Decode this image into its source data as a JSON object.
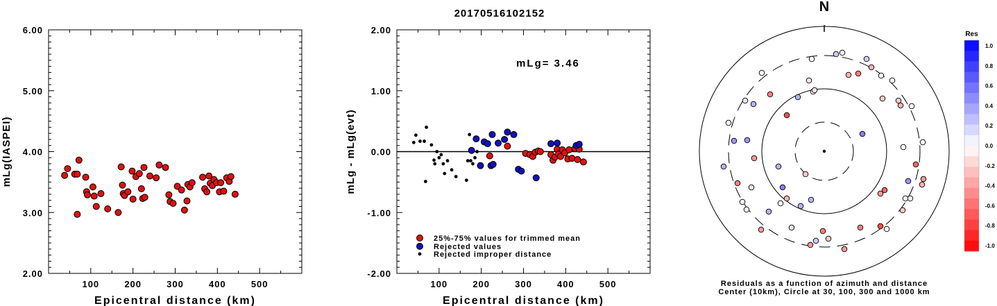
{
  "title": "20170516102152",
  "chart_data": [
    {
      "type": "scatter",
      "ylabel": "mLg(IASPEI)",
      "xlabel": "Epicentral distance (km)",
      "xlim": [
        0,
        600
      ],
      "ylim": [
        2.0,
        6.0
      ],
      "x_ticks": [
        "100",
        "200",
        "300",
        "400",
        "500"
      ],
      "y_ticks": [
        "2.00",
        "3.00",
        "4.00",
        "5.00",
        "6.00"
      ],
      "points": [
        [
          38,
          3.61
        ],
        [
          45,
          3.72
        ],
        [
          62,
          3.63
        ],
        [
          68,
          3.63
        ],
        [
          72,
          3.86
        ],
        [
          68,
          2.97
        ],
        [
          88,
          3.58
        ],
        [
          90,
          3.34
        ],
        [
          92,
          3.29
        ],
        [
          105,
          3.42
        ],
        [
          108,
          3.27
        ],
        [
          113,
          3.1
        ],
        [
          124,
          3.31
        ],
        [
          140,
          3.06
        ],
        [
          165,
          3.0
        ],
        [
          172,
          3.75
        ],
        [
          175,
          3.45
        ],
        [
          177,
          3.31
        ],
        [
          180,
          3.28
        ],
        [
          188,
          3.34
        ],
        [
          198,
          3.68
        ],
        [
          200,
          3.22
        ],
        [
          207,
          3.59
        ],
        [
          215,
          3.64
        ],
        [
          220,
          3.39
        ],
        [
          223,
          3.23
        ],
        [
          226,
          3.74
        ],
        [
          228,
          3.25
        ],
        [
          240,
          3.6
        ],
        [
          255,
          3.57
        ],
        [
          262,
          3.78
        ],
        [
          277,
          3.74
        ],
        [
          285,
          3.29
        ],
        [
          288,
          3.18
        ],
        [
          295,
          3.15
        ],
        [
          305,
          3.43
        ],
        [
          315,
          3.37
        ],
        [
          322,
          3.04
        ],
        [
          328,
          3.19
        ],
        [
          330,
          3.46
        ],
        [
          335,
          3.42
        ],
        [
          340,
          3.49
        ],
        [
          365,
          3.58
        ],
        [
          370,
          3.39
        ],
        [
          375,
          3.34
        ],
        [
          380,
          3.6
        ],
        [
          383,
          3.48
        ],
        [
          388,
          3.44
        ],
        [
          392,
          3.54
        ],
        [
          398,
          3.49
        ],
        [
          405,
          3.34
        ],
        [
          408,
          3.49
        ],
        [
          415,
          3.35
        ],
        [
          422,
          3.57
        ],
        [
          428,
          3.51
        ],
        [
          432,
          3.59
        ],
        [
          442,
          3.3
        ]
      ]
    },
    {
      "type": "scatter",
      "ylabel": "mLg - mLg(evt)",
      "xlabel": "Epicentral distance (km)",
      "annotation": "mLg= 3.46",
      "xlim": [
        0,
        600
      ],
      "ylim": [
        -2.0,
        2.0
      ],
      "x_ticks": [
        "100",
        "200",
        "300",
        "400",
        "500"
      ],
      "y_ticks": [
        "-2.00",
        "-1.00",
        "0.00",
        "1.00",
        "2.00"
      ],
      "legend": [
        "25%-75% values for trimmed mean",
        "Rejected values",
        "Rejected improper distance"
      ],
      "series": [
        {
          "name": "25%-75% values for trimmed mean",
          "color": "#dd1111",
          "points": [
            [
              220,
              -0.07
            ],
            [
              262,
              0.09
            ],
            [
              305,
              -0.03
            ],
            [
              315,
              -0.05
            ],
            [
              322,
              -0.08
            ],
            [
              328,
              -0.01
            ],
            [
              335,
              0.01
            ],
            [
              340,
              0.0
            ],
            [
              365,
              -0.05
            ],
            [
              370,
              -0.14
            ],
            [
              375,
              -0.09
            ],
            [
              380,
              0.04
            ],
            [
              383,
              -0.04
            ],
            [
              388,
              -0.08
            ],
            [
              392,
              0.03
            ],
            [
              398,
              -0.02
            ],
            [
              405,
              -0.12
            ],
            [
              408,
              0.03
            ],
            [
              415,
              -0.11
            ],
            [
              422,
              0.05
            ],
            [
              428,
              -0.13
            ],
            [
              432,
              0.04
            ],
            [
              442,
              -0.17
            ]
          ]
        },
        {
          "name": "Rejected values",
          "color": "#1111bb",
          "points": [
            [
              177,
              0.02
            ],
            [
              188,
              0.21
            ],
            [
              198,
              -0.23
            ],
            [
              207,
              0.16
            ],
            [
              215,
              0.13
            ],
            [
              223,
              -0.23
            ],
            [
              226,
              0.28
            ],
            [
              228,
              -0.21
            ],
            [
              240,
              0.14
            ],
            [
              255,
              0.2
            ],
            [
              262,
              0.32
            ],
            [
              277,
              0.28
            ],
            [
              288,
              -0.29
            ],
            [
              295,
              -0.32
            ],
            [
              330,
              -0.43
            ],
            [
              365,
              0.13
            ],
            [
              380,
              0.14
            ],
            [
              425,
              0.1
            ],
            [
              432,
              0.12
            ]
          ]
        },
        {
          "name": "Rejected improper distance",
          "color": "#000000",
          "points": [
            [
              40,
              0.15
            ],
            [
              45,
              0.27
            ],
            [
              55,
              0.17
            ],
            [
              65,
              0.17
            ],
            [
              70,
              0.4
            ],
            [
              68,
              -0.49
            ],
            [
              82,
              0.11
            ],
            [
              88,
              -0.14
            ],
            [
              90,
              -0.2
            ],
            [
              95,
              0.0
            ],
            [
              100,
              -0.1
            ],
            [
              105,
              -0.05
            ],
            [
              110,
              -0.2
            ],
            [
              113,
              -0.36
            ],
            [
              120,
              -0.15
            ],
            [
              130,
              -0.3
            ],
            [
              140,
              -0.41
            ],
            [
              165,
              -0.47
            ],
            [
              168,
              -0.15
            ],
            [
              172,
              0.28
            ],
            [
              175,
              -0.15
            ],
            [
              180,
              -0.2
            ],
            [
              185,
              -0.1
            ],
            [
              190,
              0.0
            ]
          ]
        }
      ]
    },
    {
      "type": "polar-scatter",
      "north_label": "N",
      "caption_line1": "Residuals as a function of azimuth and distance",
      "caption_line2": "Center (10km), Circle at 30, 100, 300 and 1000 km",
      "colorbar_title": "Res",
      "colorbar_ticks": [
        "1.0",
        "0.8",
        "0.6",
        "0.4",
        "0.2",
        "0.0",
        "-0.2",
        "-0.4",
        "-0.6",
        "-0.8",
        "-1.0"
      ],
      "points": [
        [
          {
            "x": 1214,
            "y": 76
          },
          0.0
        ],
        [
          {
            "x": 1205,
            "y": 78
          },
          0.2
        ],
        [
          {
            "x": 1170,
            "y": 85
          },
          0.0
        ],
        [
          {
            "x": 1249,
            "y": 85
          },
          0.2
        ],
        [
          {
            "x": 1256,
            "y": 97
          },
          -0.3
        ],
        [
          {
            "x": 1237,
            "y": 106
          },
          -0.5
        ],
        [
          {
            "x": 1223,
            "y": 108
          },
          -0.3
        ],
        [
          {
            "x": 1098,
            "y": 105
          },
          0.0
        ],
        [
          {
            "x": 1270,
            "y": 109
          },
          0.0
        ],
        [
          {
            "x": 1166,
            "y": 116
          },
          -0.1
        ],
        [
          {
            "x": 1286,
            "y": 116
          },
          0.0
        ],
        [
          {
            "x": 1172,
            "y": 132
          },
          0.0
        ],
        [
          {
            "x": 1174,
            "y": 130
          },
          -0.1
        ],
        [
          {
            "x": 1110,
            "y": 136
          },
          -0.5
        ],
        [
          {
            "x": 1150,
            "y": 140
          },
          0.3
        ],
        [
          {
            "x": 1272,
            "y": 142
          },
          -0.2
        ],
        [
          {
            "x": 1074,
            "y": 145
          },
          0.1
        ],
        [
          {
            "x": 1295,
            "y": 145
          },
          -0.2
        ],
        [
          {
            "x": 1086,
            "y": 150
          },
          0.3
        ],
        [
          {
            "x": 1298,
            "y": 152
          },
          -0.3
        ],
        [
          {
            "x": 1314,
            "y": 153
          },
          0.0
        ],
        [
          {
            "x": 1134,
            "y": 166
          },
          -0.7
        ],
        [
          {
            "x": 1050,
            "y": 177
          },
          0.0
        ],
        [
          {
            "x": 1243,
            "y": 193
          },
          0.5
        ],
        [
          {
            "x": 1058,
            "y": 203
          },
          0.4
        ],
        [
          {
            "x": 1077,
            "y": 202
          },
          0.4
        ],
        [
          {
            "x": 1330,
            "y": 205
          },
          0.0
        ],
        [
          {
            "x": 1302,
            "y": 212
          },
          0.0
        ],
        [
          {
            "x": 1320,
            "y": 237
          },
          -0.6
        ],
        [
          {
            "x": 1043,
            "y": 240
          },
          0.3
        ],
        [
          {
            "x": 1087,
            "y": 228
          },
          -0.4
        ],
        [
          {
            "x": 1122,
            "y": 240
          },
          0.3
        ],
        [
          {
            "x": 1161,
            "y": 251
          },
          -0.2
        ],
        [
          {
            "x": 1063,
            "y": 264
          },
          -0.5
        ],
        [
          {
            "x": 1331,
            "y": 258
          },
          -0.4
        ],
        [
          {
            "x": 1309,
            "y": 261
          },
          0.4
        ],
        [
          {
            "x": 1329,
            "y": 266
          },
          -0.3
        ],
        [
          {
            "x": 1083,
            "y": 270
          },
          -0.1
        ],
        [
          {
            "x": 1128,
            "y": 270
          },
          0.5
        ],
        [
          {
            "x": 1275,
            "y": 274
          },
          -0.6
        ],
        [
          {
            "x": 1269,
            "y": 279
          },
          -0.4
        ],
        [
          {
            "x": 1134,
            "y": 286
          },
          -0.3
        ],
        [
          {
            "x": 1169,
            "y": 288
          },
          0.3
        ],
        [
          {
            "x": 1125,
            "y": 293
          },
          0.0
        ],
        [
          {
            "x": 1070,
            "y": 291
          },
          0.0
        ],
        [
          {
            "x": 1312,
            "y": 286
          },
          0.0
        ],
        [
          {
            "x": 1305,
            "y": 286
          },
          0.0
        ],
        [
          {
            "x": 1076,
            "y": 302
          },
          0.0
        ],
        [
          {
            "x": 1154,
            "y": 297
          },
          0.3
        ],
        [
          {
            "x": 1108,
            "y": 305
          },
          0.3
        ],
        [
          {
            "x": 1301,
            "y": 303
          },
          -0.2
        ],
        [
          {
            "x": 1240,
            "y": 328
          },
          -0.5
        ],
        [
          {
            "x": 1269,
            "y": 326
          },
          -0.7
        ],
        [
          {
            "x": 1097,
            "y": 331
          },
          -0.4
        ],
        [
          {
            "x": 1278,
            "y": 330
          },
          0.0
        ],
        [
          {
            "x": 1141,
            "y": 328
          },
          0.1
        ],
        [
          {
            "x": 1186,
            "y": 333
          },
          -0.5
        ],
        [
          {
            "x": 1176,
            "y": 347
          },
          0.2
        ],
        [
          {
            "x": 1168,
            "y": 353
          },
          -0.4
        ],
        [
          {
            "x": 1217,
            "y": 359
          },
          -0.4
        ],
        [
          {
            "x": 1194,
            "y": 344
          },
          -0.2
        ]
      ]
    }
  ]
}
